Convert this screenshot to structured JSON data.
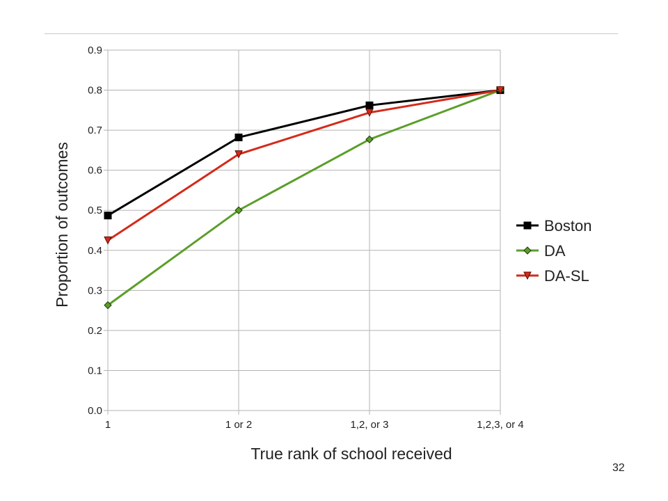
{
  "slide": {
    "page_number": "32"
  },
  "chart_data": {
    "type": "line",
    "title": "",
    "xlabel": "True rank of school received",
    "ylabel": "Proportion of outcomes",
    "categories": [
      "1",
      "1 or 2",
      "1,2, or 3",
      "1,2,3, or 4"
    ],
    "ylim": [
      0,
      0.9
    ],
    "yticks": [
      "0.0",
      "0.1",
      "0.2",
      "0.3",
      "0.4",
      "0.5",
      "0.6",
      "0.7",
      "0.8",
      "0.9"
    ],
    "grid": true,
    "legend_position": "right",
    "series": [
      {
        "name": "Boston",
        "color": "#000000",
        "marker": "square",
        "values": [
          0.487,
          0.682,
          0.762,
          0.8
        ]
      },
      {
        "name": "DA",
        "color": "#5a9e28",
        "marker": "diamond",
        "values": [
          0.263,
          0.5,
          0.677,
          0.8
        ]
      },
      {
        "name": "DA-SL",
        "color": "#d42a1a",
        "marker": "triangle-down",
        "values": [
          0.425,
          0.64,
          0.744,
          0.8
        ]
      }
    ]
  }
}
